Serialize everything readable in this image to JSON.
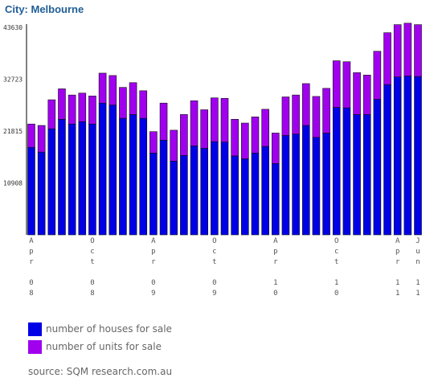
{
  "title": "City: Melbourne",
  "source": "source: SQM research.com.au",
  "colors": {
    "houses": "#0000e6",
    "units": "#a000ee"
  },
  "legend": {
    "houses": "number of houses for sale",
    "units": "number of units for sale"
  },
  "chart_data": {
    "type": "bar",
    "stacked": true,
    "ylim": [
      0,
      43630
    ],
    "yticks": [
      10908,
      21815,
      32723,
      43630
    ],
    "xtick_labels": [
      {
        "index": 0,
        "label": "Apr 08"
      },
      {
        "index": 6,
        "label": "Oct 08"
      },
      {
        "index": 12,
        "label": "Apr 09"
      },
      {
        "index": 18,
        "label": "Oct 09"
      },
      {
        "index": 24,
        "label": "Apr 10"
      },
      {
        "index": 30,
        "label": "Oct 10"
      },
      {
        "index": 36,
        "label": "Apr 11"
      },
      {
        "index": 38,
        "label": "Jun 11"
      }
    ],
    "series": [
      {
        "name": "number of houses for sale",
        "values": [
          18400,
          17400,
          22300,
          24300,
          23300,
          23800,
          23300,
          27700,
          27300,
          24500,
          25300,
          24500,
          17200,
          19900,
          15500,
          16700,
          18700,
          18200,
          19600,
          19500,
          16600,
          16000,
          17200,
          18600,
          15000,
          20900,
          21200,
          23000,
          20500,
          21400,
          26800,
          26700,
          25300,
          25300,
          28500,
          31600,
          33200,
          33400,
          33300
        ]
      },
      {
        "name": "number of units for sale",
        "values": [
          4900,
          5600,
          6100,
          6400,
          6100,
          6000,
          5900,
          6300,
          6200,
          6500,
          6700,
          5800,
          4500,
          7800,
          6500,
          8600,
          9500,
          8100,
          9200,
          9200,
          7700,
          7500,
          7600,
          7800,
          6400,
          8100,
          8200,
          8800,
          8600,
          9400,
          9800,
          9700,
          8800,
          8300,
          10100,
          10900,
          11000,
          11100,
          10900
        ]
      }
    ]
  }
}
